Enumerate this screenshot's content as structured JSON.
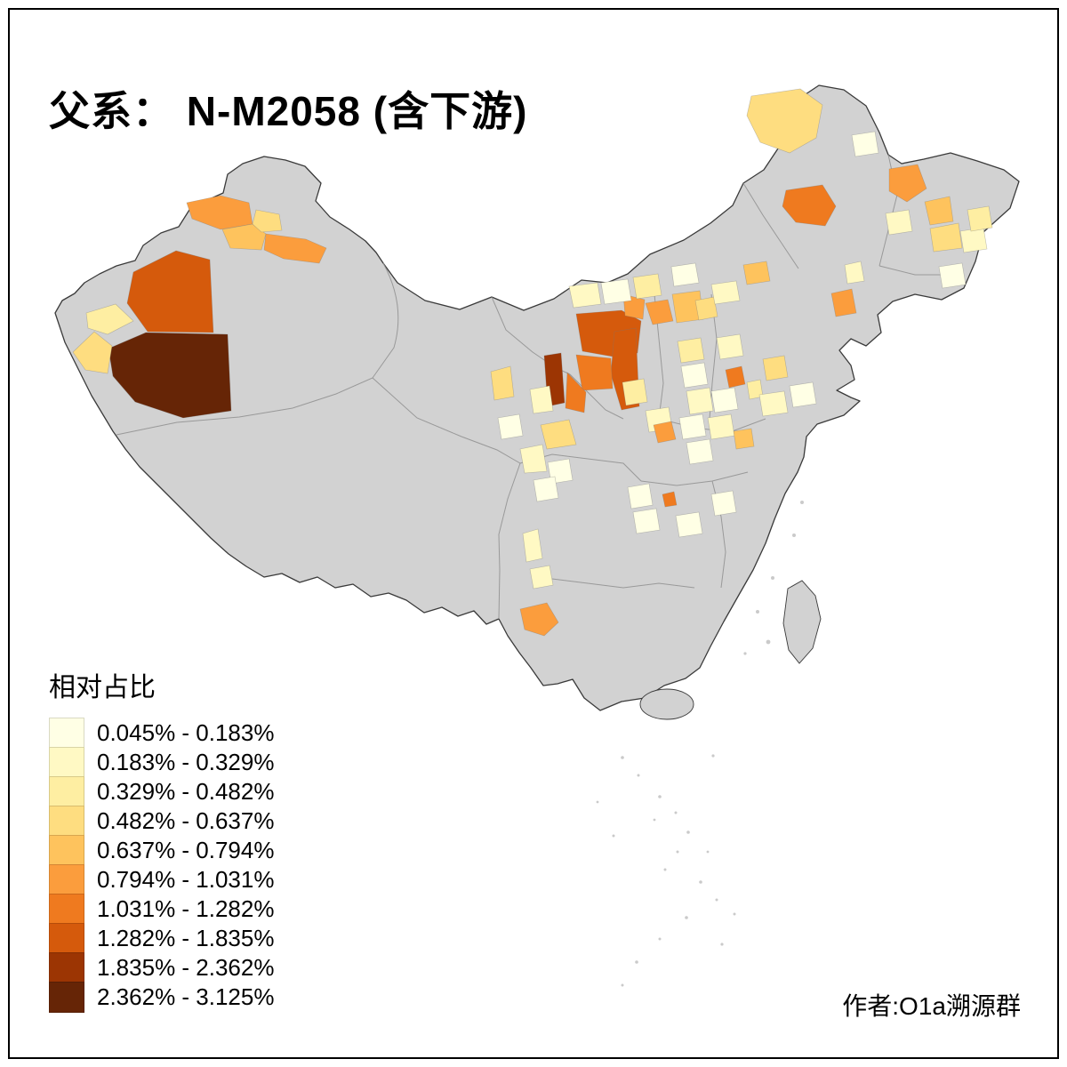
{
  "title": "父系： N-M2058 (含下游)",
  "legend": {
    "title": "相对占比",
    "items": [
      {
        "label": "0.045% - 0.183%",
        "color": "#FFFFE5"
      },
      {
        "label": "0.183% - 0.329%",
        "color": "#FFF9C4"
      },
      {
        "label": "0.329% - 0.482%",
        "color": "#FEEEA2"
      },
      {
        "label": "0.482% - 0.637%",
        "color": "#FEDD80"
      },
      {
        "label": "0.637% - 0.794%",
        "color": "#FEC35D"
      },
      {
        "label": "0.794% - 1.031%",
        "color": "#FB9D3D"
      },
      {
        "label": "1.031% - 1.282%",
        "color": "#EF7A1F"
      },
      {
        "label": "1.282% - 1.835%",
        "color": "#D55A0C"
      },
      {
        "label": "1.835% - 2.362%",
        "color": "#9C3503"
      },
      {
        "label": "2.362% - 3.125%",
        "color": "#662506"
      }
    ]
  },
  "credit": "作者:O1a溯源群",
  "map": {
    "base_fill": "#D2D2D2",
    "coast_stroke": "#3A3A3A",
    "province_stroke": "#8F8F8F",
    "dot_fill": "#BDBDBD",
    "background": "#FFFFFF"
  }
}
